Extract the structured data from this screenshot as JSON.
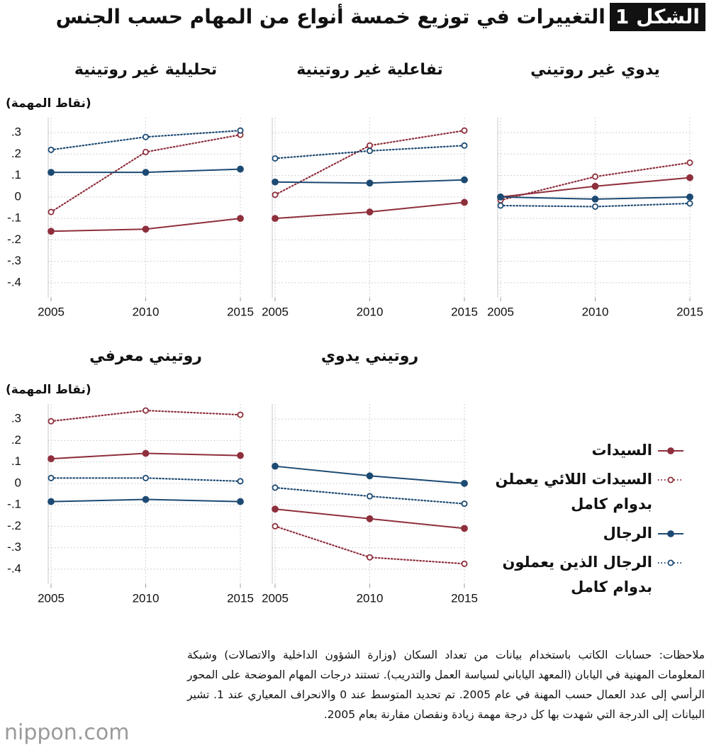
{
  "figure_label": "الشكل 1",
  "title": "التغييرات في توزيع خمسة أنواع من المهام حسب الجنس",
  "notes": "ملاحظات: حسابات الكاتب باستخدام بيانات من تعداد السكان (وزارة الشؤون الداخلية والاتصالات) وشبكة المعلومات المهنية في اليابان (المعهد الياباني لسياسة العمل والتدريب). تستند درجات المهام الموضحة على المحور الرأسي إلى عدد العمال حسب المهنة في عام 2005. تم تحديد المتوسط عند 0 والانحراف المعياري عند 1. تشير البيانات إلى الدرجة التي شهدت بها كل درجة مهمة زيادة ونقصان مقارنة بعام 2005.",
  "brand": "nippon.com",
  "chart_data": [
    {
      "type": "line",
      "title": "تحليلية غير روتينية",
      "ylabel": "(نقاط المهمة)",
      "x": [
        2005,
        2010,
        2015
      ],
      "xlim": [
        2005,
        2015
      ],
      "xticks": [
        2005,
        2010,
        2015
      ],
      "ylim": [
        -0.47,
        0.37
      ],
      "yticks": [
        {
          "value": 0.3,
          "label": ".3"
        },
        {
          "value": 0.2,
          "label": ".2"
        },
        {
          "value": 0.1,
          "label": ".1"
        },
        0,
        {
          "value": -0.1,
          "label": "-.1"
        },
        {
          "value": -0.2,
          "label": "-.2"
        },
        {
          "value": -0.3,
          "label": "-.3"
        },
        {
          "value": -0.4,
          "label": "-.4"
        }
      ],
      "grid": true,
      "series": [
        {
          "name": "السيدات",
          "color": "#8e2f3c",
          "style": "solid",
          "values": [
            -0.16,
            -0.15,
            -0.1
          ]
        },
        {
          "name": "السيدات اللائي يعملن بدوام كامل",
          "color": "#8e2f3c",
          "style": "dotted",
          "values": [
            -0.07,
            0.21,
            0.29
          ]
        },
        {
          "name": "الرجال",
          "color": "#1c4a72",
          "style": "solid",
          "values": [
            0.115,
            0.115,
            0.13
          ]
        },
        {
          "name": "الرجال الذين يعملون بدوام كامل",
          "color": "#1c4a72",
          "style": "dotted",
          "values": [
            0.22,
            0.28,
            0.31
          ]
        }
      ]
    },
    {
      "type": "line",
      "title": "تفاعلية غير روتينية",
      "x": [
        2005,
        2010,
        2015
      ],
      "xlim": [
        2005,
        2015
      ],
      "xticks": [
        2005,
        2010,
        2015
      ],
      "ylim": [
        -0.47,
        0.37
      ],
      "grid": true,
      "series": [
        {
          "color": "#8e2f3c",
          "style": "solid",
          "values": [
            -0.1,
            -0.07,
            -0.025
          ]
        },
        {
          "color": "#8e2f3c",
          "style": "dotted",
          "values": [
            0.01,
            0.24,
            0.31
          ]
        },
        {
          "color": "#1c4a72",
          "style": "solid",
          "values": [
            0.07,
            0.065,
            0.08
          ]
        },
        {
          "color": "#1c4a72",
          "style": "dotted",
          "values": [
            0.18,
            0.215,
            0.24
          ]
        }
      ]
    },
    {
      "type": "line",
      "title": "يدوي غير روتيني",
      "x": [
        2005,
        2010,
        2015
      ],
      "xlim": [
        2005,
        2015
      ],
      "xticks": [
        2005,
        2010,
        2015
      ],
      "ylim": [
        -0.47,
        0.37
      ],
      "grid": true,
      "series": [
        {
          "color": "#8e2f3c",
          "style": "solid",
          "values": [
            0,
            0.05,
            0.09
          ]
        },
        {
          "color": "#8e2f3c",
          "style": "dotted",
          "values": [
            -0.015,
            0.095,
            0.16
          ]
        },
        {
          "color": "#1c4a72",
          "style": "solid",
          "values": [
            0,
            -0.01,
            0
          ]
        },
        {
          "color": "#1c4a72",
          "style": "dotted",
          "values": [
            -0.04,
            -0.045,
            -0.03
          ]
        }
      ]
    },
    {
      "type": "line",
      "title": "روتيني معرفي",
      "ylabel": "(نقاط المهمة)",
      "x": [
        2005,
        2010,
        2015
      ],
      "xlim": [
        2005,
        2015
      ],
      "xticks": [
        2005,
        2010,
        2015
      ],
      "ylim": [
        -0.47,
        0.37
      ],
      "yticks": [
        {
          "value": 0.3,
          "label": ".3"
        },
        {
          "value": 0.2,
          "label": ".2"
        },
        {
          "value": 0.1,
          "label": ".1"
        },
        0,
        {
          "value": -0.1,
          "label": "-.1"
        },
        {
          "value": -0.2,
          "label": "-.2"
        },
        {
          "value": -0.3,
          "label": "-.3"
        },
        {
          "value": -0.4,
          "label": "-.4"
        }
      ],
      "grid": true,
      "series": [
        {
          "color": "#8e2f3c",
          "style": "solid",
          "values": [
            0.115,
            0.14,
            0.13
          ]
        },
        {
          "color": "#8e2f3c",
          "style": "dotted",
          "values": [
            0.29,
            0.34,
            0.32
          ]
        },
        {
          "color": "#1c4a72",
          "style": "solid",
          "values": [
            -0.085,
            -0.075,
            -0.085
          ]
        },
        {
          "color": "#1c4a72",
          "style": "dotted",
          "values": [
            0.025,
            0.025,
            0.01
          ]
        }
      ]
    },
    {
      "type": "line",
      "title": "روتيني يدوي",
      "x": [
        2005,
        2010,
        2015
      ],
      "xlim": [
        2005,
        2015
      ],
      "xticks": [
        2005,
        2010,
        2015
      ],
      "ylim": [
        -0.47,
        0.37
      ],
      "grid": true,
      "series": [
        {
          "color": "#8e2f3c",
          "style": "solid",
          "values": [
            -0.12,
            -0.165,
            -0.21
          ]
        },
        {
          "color": "#8e2f3c",
          "style": "dotted",
          "values": [
            -0.2,
            -0.345,
            -0.375
          ]
        },
        {
          "color": "#1c4a72",
          "style": "solid",
          "values": [
            0.08,
            0.035,
            0
          ]
        },
        {
          "color": "#1c4a72",
          "style": "dotted",
          "values": [
            -0.02,
            -0.06,
            -0.095
          ]
        }
      ]
    }
  ]
}
